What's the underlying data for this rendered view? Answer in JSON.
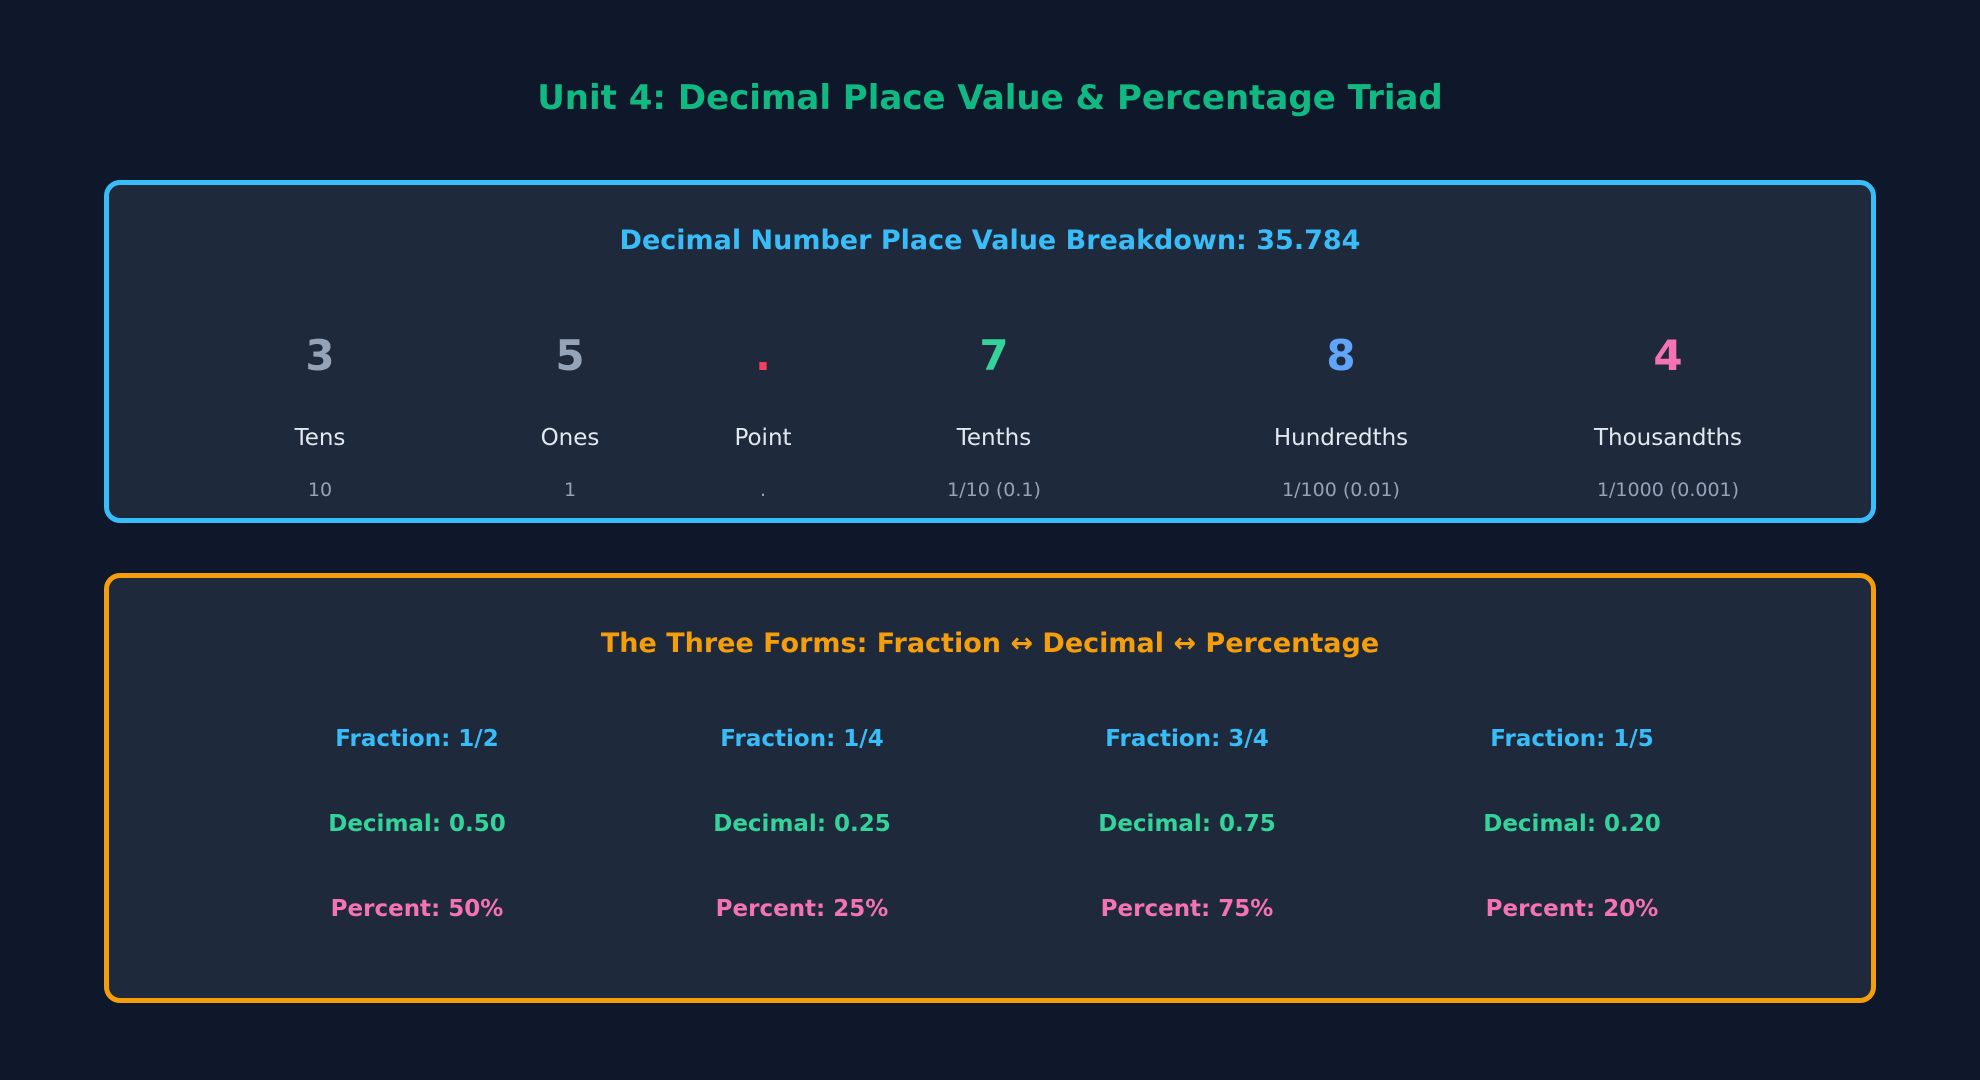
{
  "title": "Unit 4: Decimal Place Value & Percentage Triad",
  "place_value": {
    "title": "Decimal Number Place Value Breakdown: 35.784",
    "columns": [
      {
        "digit": "3",
        "name": "Tens",
        "value": "10",
        "color": "#94a3b8"
      },
      {
        "digit": "5",
        "name": "Ones",
        "value": "1",
        "color": "#94a3b8"
      },
      {
        "digit": ".",
        "name": "Point",
        "value": ".",
        "color": "#f43f5e"
      },
      {
        "digit": "7",
        "name": "Tenths",
        "value": "1/10 (0.1)",
        "color": "#34d399"
      },
      {
        "digit": "8",
        "name": "Hundredths",
        "value": "1/100 (0.01)",
        "color": "#60a5fa"
      },
      {
        "digit": "4",
        "name": "Thousandths",
        "value": "1/1000 (0.001)",
        "color": "#f472b6"
      }
    ]
  },
  "forms": {
    "title": "The Three Forms: Fraction ↔ Decimal ↔ Percentage",
    "items": [
      {
        "fraction": "Fraction: 1/2",
        "decimal": "Decimal: 0.50",
        "percent": "Percent: 50%"
      },
      {
        "fraction": "Fraction: 1/4",
        "decimal": "Decimal: 0.25",
        "percent": "Percent: 25%"
      },
      {
        "fraction": "Fraction: 3/4",
        "decimal": "Decimal: 0.75",
        "percent": "Percent: 75%"
      },
      {
        "fraction": "Fraction: 1/5",
        "decimal": "Decimal: 0.20",
        "percent": "Percent: 20%"
      }
    ]
  }
}
